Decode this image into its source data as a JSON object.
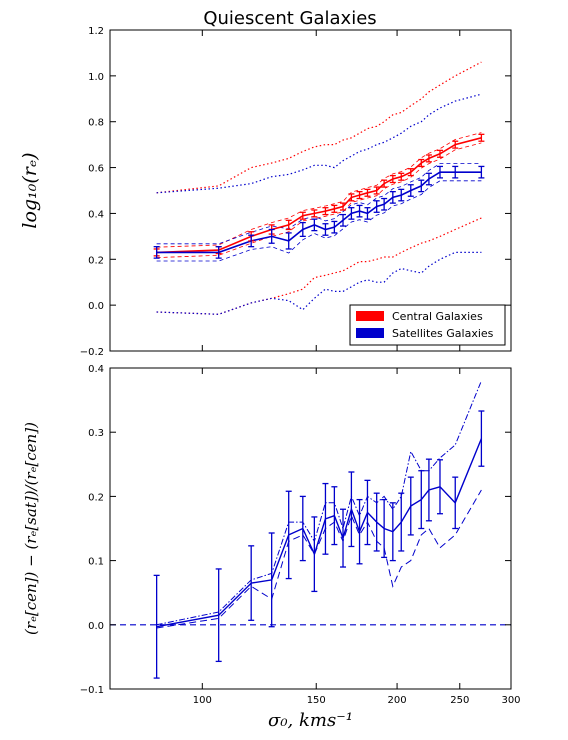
{
  "figure": {
    "title": "Quiescent Galaxies",
    "xlabel": "σ₀, kms⁻¹"
  },
  "colors": {
    "central": "#ff0000",
    "satellite": "#0000cc",
    "zero_line": "#0000cc",
    "axis": "#000000"
  },
  "chart_data": [
    {
      "type": "line",
      "panel": "top",
      "xscale": "log",
      "xlim": [
        72,
        300
      ],
      "ylim": [
        -0.2,
        1.2
      ],
      "yticks": [
        -0.2,
        0.0,
        0.2,
        0.4,
        0.6,
        0.8,
        1.0,
        1.2
      ],
      "ytick_labels": [
        "−0.2",
        "0.0",
        "0.2",
        "0.4",
        "0.6",
        "0.8",
        "1.0",
        "1.2"
      ],
      "ylabel": "log₁₀(rₑ)",
      "legend": {
        "placement": "lower-right",
        "entries": [
          "Central Galaxies",
          "Satellites Galaxies"
        ]
      },
      "x": [
        85,
        106,
        119,
        128,
        136,
        143,
        149,
        155,
        160,
        165,
        170,
        175,
        180,
        186,
        191,
        197,
        203,
        210,
        218,
        224,
        233,
        246,
        270
      ],
      "series": [
        {
          "name": "Central Galaxies",
          "color": "#ff0000",
          "y": [
            0.23,
            0.24,
            0.3,
            0.33,
            0.35,
            0.39,
            0.4,
            0.41,
            0.42,
            0.43,
            0.47,
            0.48,
            0.49,
            0.5,
            0.53,
            0.55,
            0.56,
            0.58,
            0.62,
            0.64,
            0.66,
            0.7,
            0.73
          ],
          "yerr": [
            0.015,
            0.015,
            0.02,
            0.02,
            0.02,
            0.015,
            0.015,
            0.015,
            0.015,
            0.015,
            0.015,
            0.015,
            0.015,
            0.015,
            0.015,
            0.015,
            0.015,
            0.015,
            0.015,
            0.015,
            0.015,
            0.015,
            0.015
          ],
          "band_upper": [
            0.49,
            0.52,
            0.6,
            0.62,
            0.64,
            0.67,
            0.69,
            0.7,
            0.7,
            0.72,
            0.73,
            0.75,
            0.77,
            0.78,
            0.8,
            0.83,
            0.84,
            0.87,
            0.9,
            0.93,
            0.96,
            1.0,
            1.06
          ],
          "band_lower": [
            -0.03,
            -0.04,
            0.01,
            0.03,
            0.05,
            0.07,
            0.12,
            0.13,
            0.14,
            0.15,
            0.17,
            0.19,
            0.19,
            0.2,
            0.21,
            0.21,
            0.23,
            0.25,
            0.27,
            0.28,
            0.3,
            0.33,
            0.38
          ]
        },
        {
          "name": "Satellites Galaxies",
          "color": "#0000cc",
          "y": [
            0.23,
            0.23,
            0.28,
            0.3,
            0.28,
            0.33,
            0.35,
            0.33,
            0.34,
            0.37,
            0.4,
            0.41,
            0.4,
            0.43,
            0.44,
            0.47,
            0.48,
            0.5,
            0.52,
            0.55,
            0.58,
            0.58,
            0.58
          ],
          "yerr": [
            0.025,
            0.025,
            0.025,
            0.03,
            0.035,
            0.03,
            0.025,
            0.025,
            0.025,
            0.025,
            0.025,
            0.025,
            0.025,
            0.025,
            0.025,
            0.025,
            0.025,
            0.025,
            0.025,
            0.025,
            0.025,
            0.025,
            0.025
          ],
          "band_upper": [
            0.49,
            0.51,
            0.53,
            0.56,
            0.57,
            0.59,
            0.61,
            0.61,
            0.6,
            0.63,
            0.65,
            0.67,
            0.68,
            0.7,
            0.71,
            0.73,
            0.75,
            0.78,
            0.8,
            0.83,
            0.86,
            0.89,
            0.92
          ],
          "band_lower": [
            -0.03,
            -0.04,
            0.01,
            0.03,
            0.02,
            -0.02,
            0.03,
            0.07,
            0.06,
            0.06,
            0.08,
            0.1,
            0.11,
            0.1,
            0.1,
            0.14,
            0.16,
            0.15,
            0.14,
            0.17,
            0.2,
            0.23,
            0.23
          ]
        }
      ]
    },
    {
      "type": "line",
      "panel": "bottom",
      "xscale": "log",
      "xlim": [
        72,
        300
      ],
      "xticks": [
        100,
        150,
        200,
        250,
        300
      ],
      "ylim": [
        -0.1,
        0.4
      ],
      "yticks": [
        -0.1,
        0.0,
        0.1,
        0.2,
        0.3,
        0.4
      ],
      "ytick_labels": [
        "−0.1",
        "0.0",
        "0.1",
        "0.2",
        "0.3",
        "0.4"
      ],
      "ylabel": "(rₑ[cen]) − (rₑ[sat])/(rₑ[cen])",
      "reference_line": 0.0,
      "x": [
        85,
        106,
        119,
        128,
        136,
        143,
        149,
        155,
        160,
        165,
        170,
        175,
        180,
        186,
        191,
        197,
        203,
        210,
        218,
        224,
        233,
        246,
        270
      ],
      "series": [
        {
          "color": "#0000cc",
          "y": [
            -0.003,
            0.015,
            0.065,
            0.07,
            0.14,
            0.15,
            0.11,
            0.165,
            0.17,
            0.135,
            0.18,
            0.145,
            0.175,
            0.16,
            0.15,
            0.145,
            0.16,
            0.185,
            0.195,
            0.21,
            0.215,
            0.19,
            0.29
          ],
          "yerr": [
            0.08,
            0.072,
            0.058,
            0.073,
            0.068,
            0.05,
            0.058,
            0.055,
            0.045,
            0.045,
            0.058,
            0.05,
            0.05,
            0.045,
            0.045,
            0.045,
            0.045,
            0.045,
            0.045,
            0.048,
            0.042,
            0.04,
            0.043
          ],
          "upper": [
            0.0,
            0.02,
            0.07,
            0.08,
            0.16,
            0.16,
            0.13,
            0.19,
            0.19,
            0.15,
            0.2,
            0.17,
            0.2,
            0.19,
            0.2,
            0.18,
            0.2,
            0.27,
            0.24,
            0.24,
            0.26,
            0.28,
            0.38
          ],
          "lower": [
            -0.005,
            0.01,
            0.06,
            0.04,
            0.13,
            0.14,
            0.11,
            0.15,
            0.16,
            0.13,
            0.17,
            0.14,
            0.16,
            0.13,
            0.12,
            0.06,
            0.09,
            0.1,
            0.14,
            0.15,
            0.12,
            0.14,
            0.21
          ]
        }
      ]
    }
  ]
}
